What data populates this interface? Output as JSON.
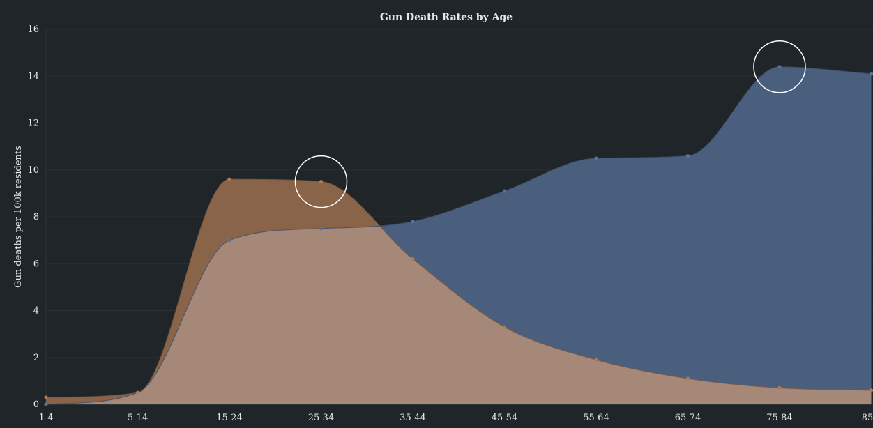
{
  "chart_data": {
    "type": "area",
    "title": "Gun Death Rates by Age",
    "ylabel": "Gun deaths per 100k residents",
    "xlabel": "",
    "categories": [
      "1-4",
      "5-14",
      "15-24",
      "25-34",
      "35-44",
      "45-54",
      "55-64",
      "65-74",
      "75-84",
      "85+"
    ],
    "ylim": [
      0,
      16
    ],
    "yticks": [
      0,
      2,
      4,
      6,
      8,
      10,
      12,
      14,
      16
    ],
    "grid": true,
    "series": [
      {
        "color": "#4a5f7e",
        "values": [
          0.0,
          0.5,
          7.0,
          7.5,
          7.8,
          9.1,
          10.5,
          10.6,
          14.4,
          14.1
        ]
      },
      {
        "color": "#8a6448",
        "values": [
          0.3,
          0.5,
          9.6,
          9.5,
          6.2,
          3.3,
          1.9,
          1.1,
          0.7,
          0.6
        ]
      }
    ],
    "overlap_color": "#a68878",
    "highlights": [
      {
        "series": 1,
        "category": "25-34"
      },
      {
        "series": 0,
        "category": "75-84"
      }
    ]
  }
}
